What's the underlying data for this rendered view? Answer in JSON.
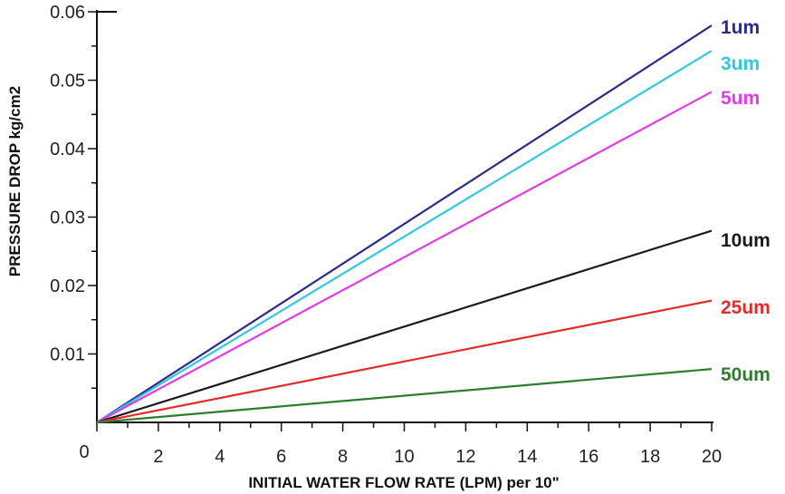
{
  "chart_data": {
    "type": "line",
    "xlabel": "INITIAL WATER FLOW RATE (LPM) per 10\"",
    "ylabel": "PRESSURE DROP kg/cm2",
    "xlim": [
      0,
      20
    ],
    "ylim": [
      0,
      0.06
    ],
    "x_ticks": [
      0,
      2,
      4,
      6,
      8,
      10,
      12,
      14,
      16,
      18,
      20
    ],
    "x_tick_labels": [
      "0",
      "2",
      "4",
      "6",
      "8",
      "10",
      "12",
      "14",
      "16",
      "18",
      "20"
    ],
    "y_ticks": [
      0.01,
      0.02,
      0.03,
      0.04,
      0.05,
      0.06
    ],
    "y_tick_labels": [
      "0.01",
      "0.02",
      "0.03",
      "0.04",
      "0.05",
      "0.06"
    ],
    "grid": false,
    "legend": "direct labels at right end of lines",
    "series": [
      {
        "name": "1um",
        "color": "#2b2b8c",
        "x": [
          0,
          20
        ],
        "y": [
          0,
          0.058
        ]
      },
      {
        "name": "3um",
        "color": "#33c6e0",
        "x": [
          0,
          20
        ],
        "y": [
          0,
          0.0543
        ]
      },
      {
        "name": "5um",
        "color": "#e23be6",
        "x": [
          0,
          20
        ],
        "y": [
          0,
          0.0483
        ]
      },
      {
        "name": "10um",
        "color": "#1a1a1a",
        "x": [
          0,
          20
        ],
        "y": [
          0,
          0.028
        ]
      },
      {
        "name": "25um",
        "color": "#e32b2b",
        "x": [
          0,
          20
        ],
        "y": [
          0,
          0.0178
        ]
      },
      {
        "name": "50um",
        "color": "#2e7d2e",
        "x": [
          0,
          20
        ],
        "y": [
          0,
          0.0078
        ]
      }
    ]
  }
}
